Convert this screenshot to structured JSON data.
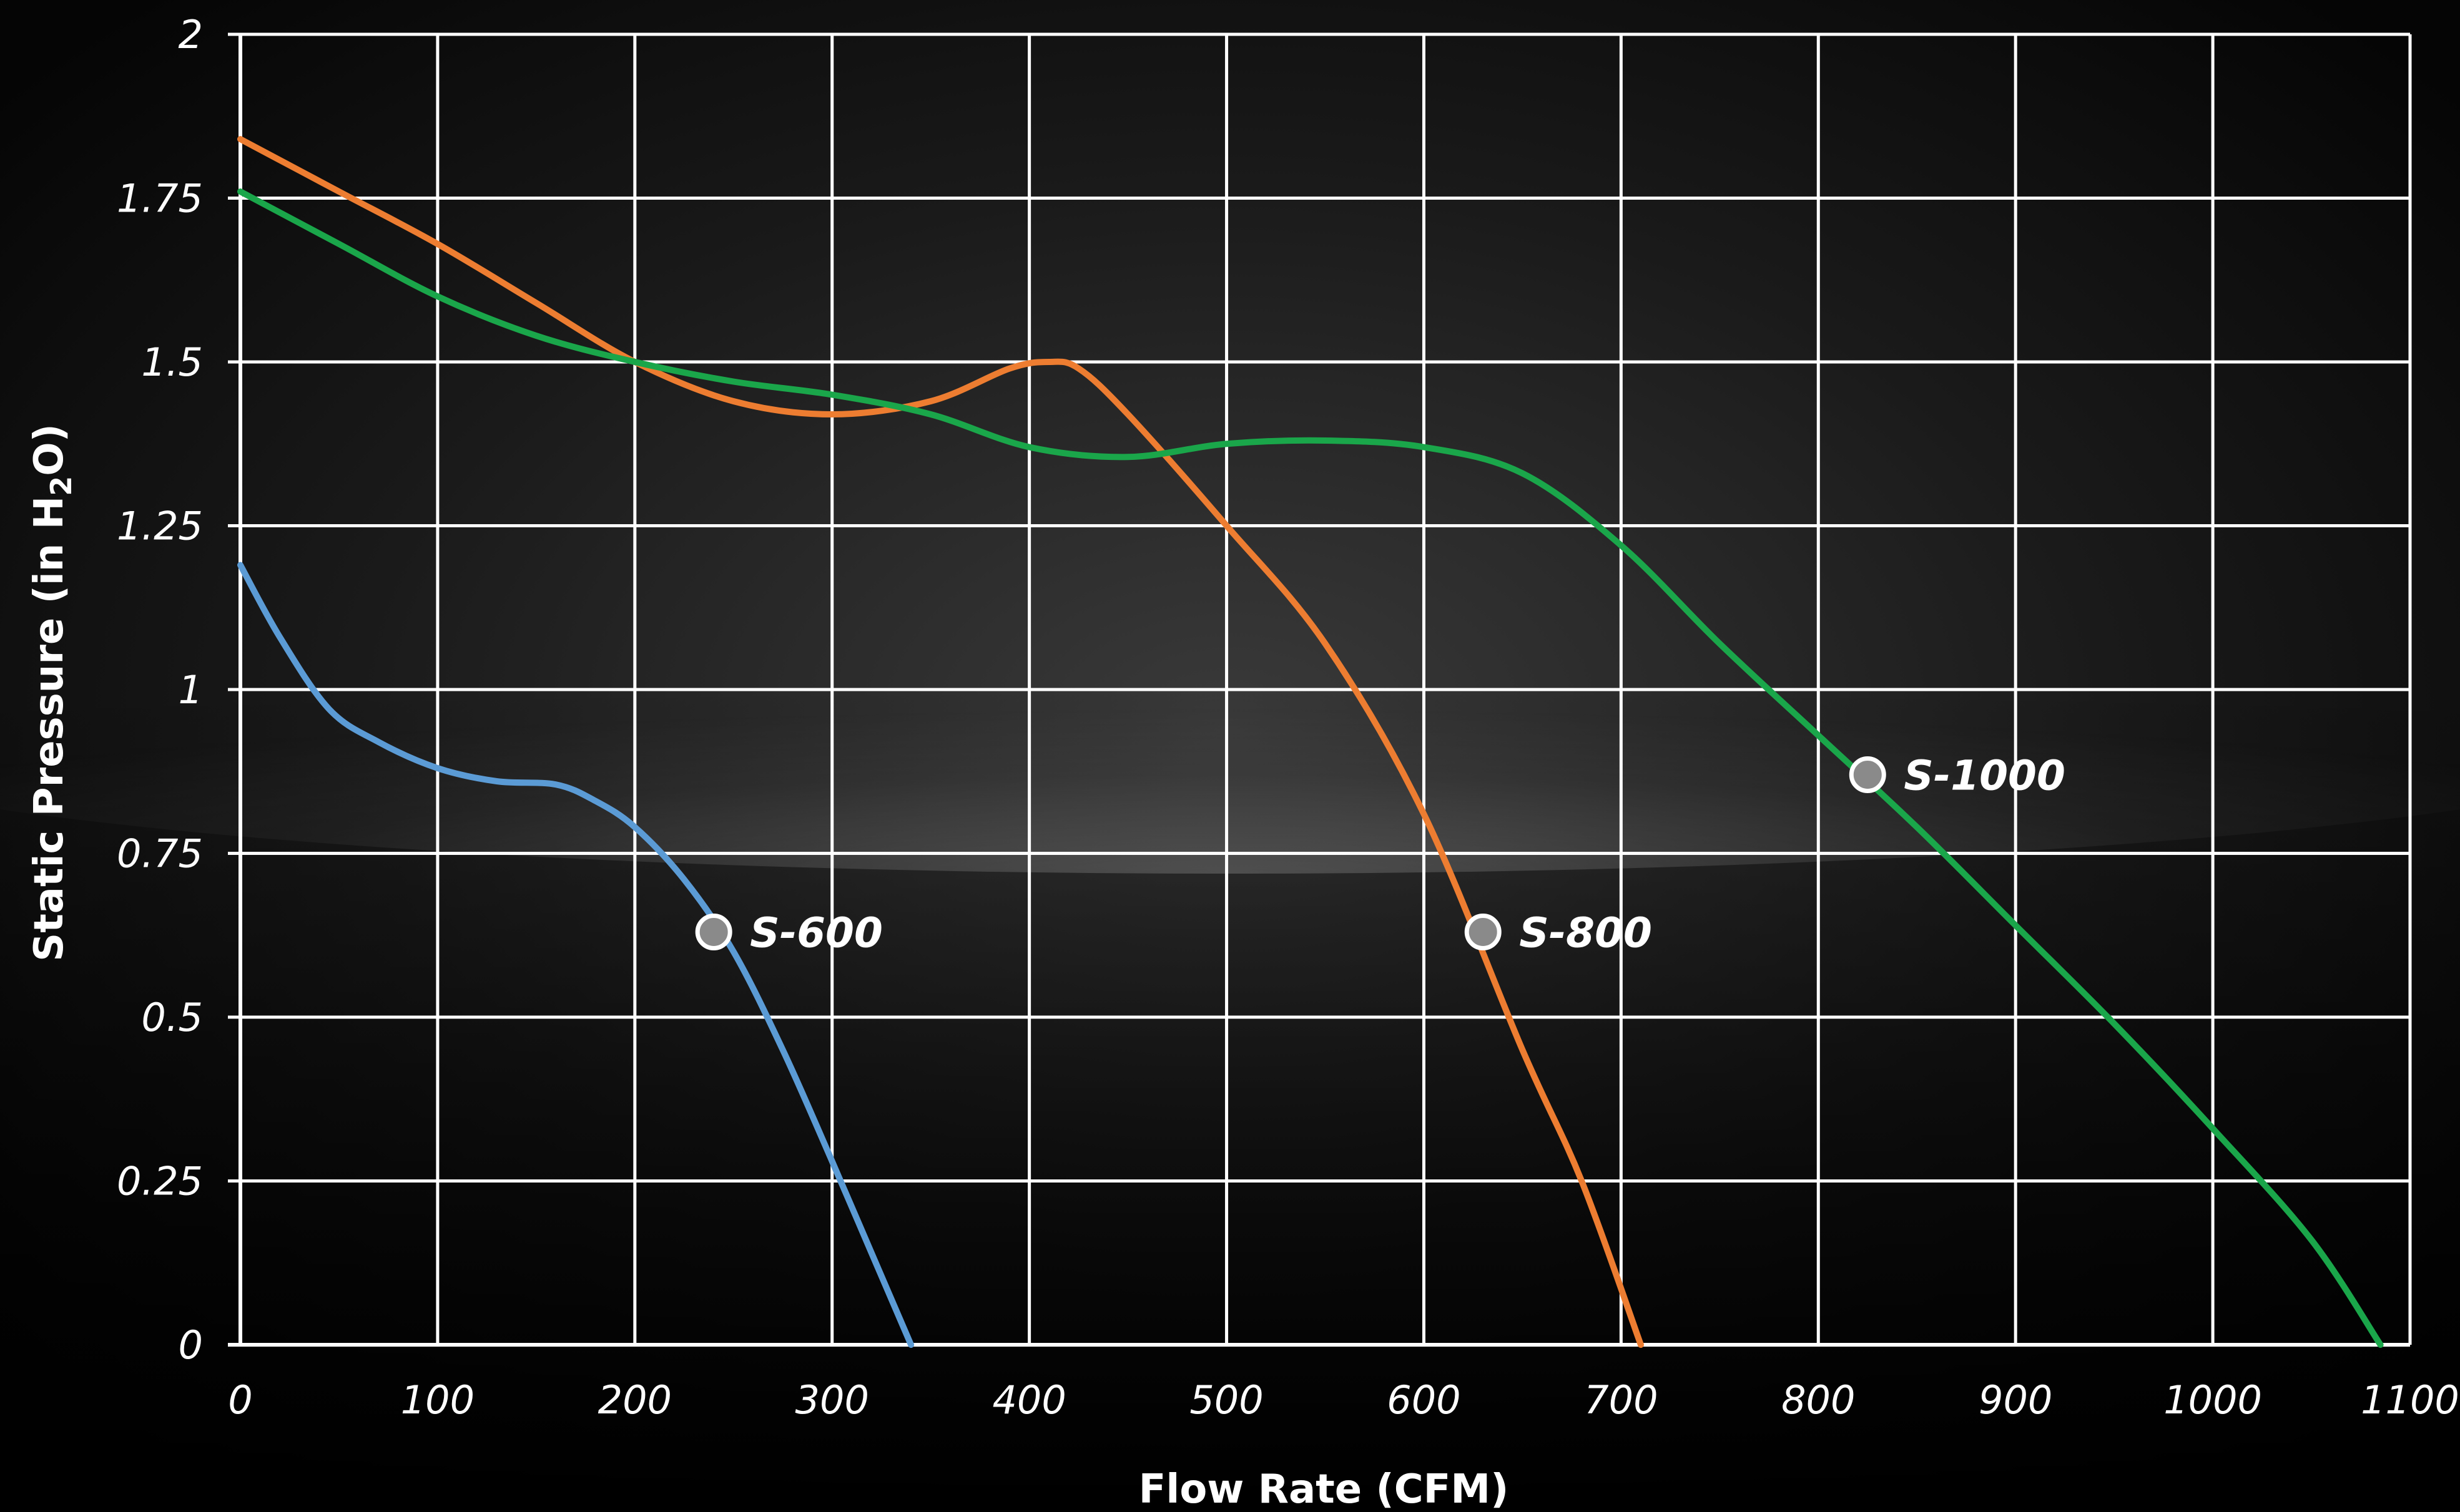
{
  "chart_data": {
    "type": "line",
    "xlabel": "Flow Rate (CFM)",
    "ylabel_parts": {
      "main": "Static Pressure (in H",
      "sub": "2",
      "tail": "O)"
    },
    "xlim": [
      0,
      1100
    ],
    "ylim": [
      0,
      2
    ],
    "x_ticks": [
      "0",
      "100",
      "200",
      "300",
      "400",
      "500",
      "600",
      "700",
      "800",
      "900",
      "1000",
      "1100"
    ],
    "y_ticks": [
      "0",
      "0.25",
      "0.5",
      "0.75",
      "1",
      "1.25",
      "1.5",
      "1.75",
      "2"
    ],
    "grid": true,
    "series": [
      {
        "name": "S-600",
        "color": "#5b9bd5",
        "x": [
          0,
          20,
          45,
          70,
          100,
          130,
          160,
          180,
          200,
          225,
          250,
          275,
          300,
          320,
          340
        ],
        "y": [
          1.19,
          1.08,
          0.97,
          0.92,
          0.88,
          0.86,
          0.855,
          0.83,
          0.79,
          0.71,
          0.6,
          0.45,
          0.28,
          0.14,
          0.0
        ],
        "marker": {
          "x": 240,
          "y": 0.63
        }
      },
      {
        "name": "S-800",
        "color": "#ed7d31",
        "x": [
          0,
          50,
          100,
          150,
          200,
          250,
          300,
          350,
          390,
          410,
          425,
          450,
          500,
          550,
          600,
          650,
          680,
          710
        ],
        "y": [
          1.84,
          1.76,
          1.68,
          1.59,
          1.5,
          1.44,
          1.42,
          1.44,
          1.49,
          1.5,
          1.49,
          1.42,
          1.25,
          1.07,
          0.81,
          0.45,
          0.25,
          0.0
        ],
        "marker": {
          "x": 630,
          "y": 0.63
        }
      },
      {
        "name": "S-1000",
        "color": "#1aa64a",
        "x": [
          0,
          50,
          100,
          150,
          200,
          250,
          300,
          350,
          400,
          450,
          500,
          550,
          600,
          650,
          700,
          750,
          800,
          850,
          900,
          950,
          1000,
          1050,
          1085
        ],
        "y": [
          1.76,
          1.68,
          1.6,
          1.54,
          1.5,
          1.47,
          1.45,
          1.42,
          1.37,
          1.355,
          1.375,
          1.38,
          1.37,
          1.33,
          1.22,
          1.07,
          0.93,
          0.79,
          0.64,
          0.49,
          0.33,
          0.16,
          0.0
        ],
        "marker": {
          "x": 825,
          "y": 0.87
        }
      }
    ]
  }
}
